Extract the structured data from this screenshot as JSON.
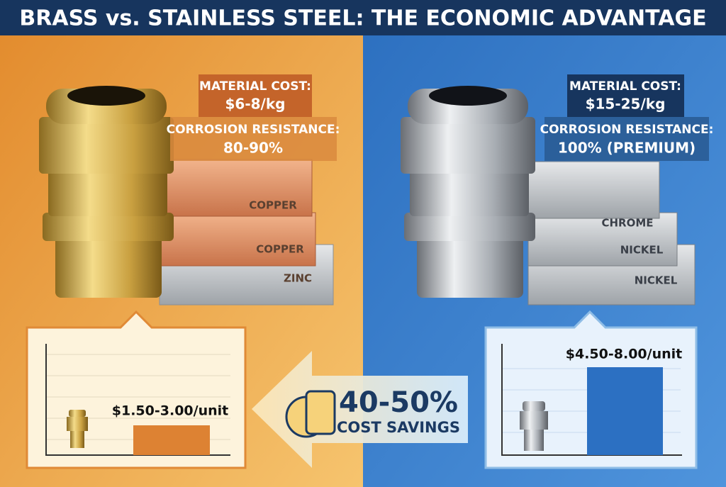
{
  "header": {
    "title": "BRASS vs. STAINLESS STEEL: THE ECONOMIC ADVANTAGE"
  },
  "brass": {
    "material_cost_label": "MATERIAL COST:",
    "material_cost": "$6-8/kg",
    "corrosion_label": "CORROSION RESISTANCE:",
    "corrosion": "80-90%",
    "metals": [
      "COPPER",
      "COPPER",
      "ZINC"
    ],
    "unit_price": "$1.50-3.00/unit"
  },
  "stainless": {
    "material_cost_label": "MATERIAL COST:",
    "material_cost": "$15-25/kg",
    "corrosion_label": "CORROSION RESISTANCE:",
    "corrosion": "100% (PREMIUM)",
    "metals": [
      "CHROME",
      "NICKEL",
      "NICKEL"
    ],
    "unit_price": "$4.50-8.00/unit"
  },
  "savings": {
    "percent": "40-50%",
    "label": "COST SAVINGS"
  }
}
